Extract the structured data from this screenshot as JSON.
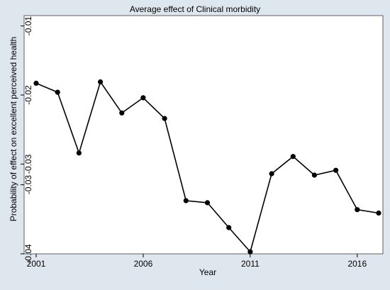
{
  "chart_data": {
    "type": "line",
    "title": "Average effect of Clinical morbidity",
    "xlabel": "Year",
    "ylabel": "Probability of effect on excellent perceived health",
    "x": [
      2001,
      2002,
      2003,
      2004,
      2005,
      2006,
      2007,
      2008,
      2009,
      2010,
      2011,
      2012,
      2013,
      2014,
      2015,
      2016,
      2017
    ],
    "series": [
      {
        "values": [
          -0.0183,
          -0.0196,
          -0.0284,
          -0.0181,
          -0.0226,
          -0.0204,
          -0.0234,
          -0.0353,
          -0.0356,
          -0.0392,
          -0.0427,
          -0.0314,
          -0.0289,
          -0.0316,
          -0.0309,
          -0.0366,
          -0.0371
        ]
      }
    ],
    "xlim": [
      2001,
      2017
    ],
    "ylim": [
      -0.043,
      -0.0085
    ],
    "x_ticks": [
      2001,
      2006,
      2011,
      2016
    ],
    "x_tick_labels": [
      "2001",
      "2006",
      "2011",
      "2016"
    ],
    "y_ticks": [
      -0.01,
      -0.02,
      -0.03,
      -0.033,
      -0.043
    ],
    "y_tick_labels": [
      "-0.01",
      "-0.02",
      "-0.03",
      "-0.03",
      "-0.04"
    ],
    "grid": false,
    "colors": {
      "line": "#000000",
      "marker": "#000000",
      "plot_background": "#ffffff",
      "figure_background": "#dfe7ee"
    }
  }
}
